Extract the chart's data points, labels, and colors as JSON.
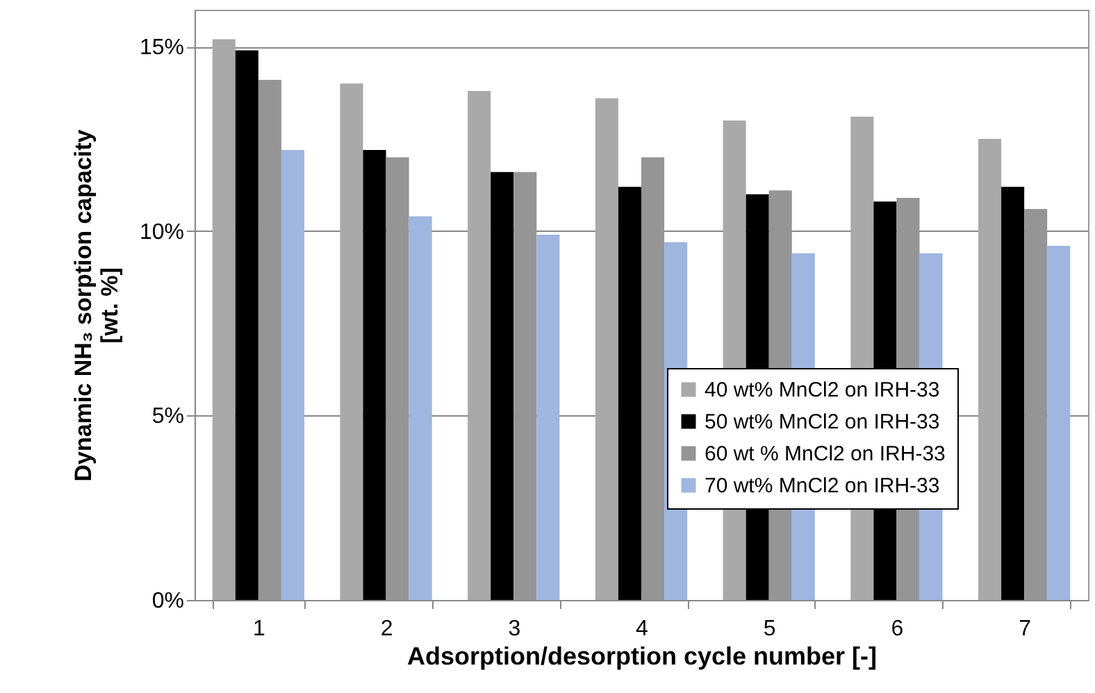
{
  "chart_data": {
    "type": "bar",
    "xlabel": "Adsorption/desorption cycle number [-]",
    "ylabel": "Dynamic NH₃ sorption capacity [wt. %]",
    "categories": [
      "1",
      "2",
      "3",
      "4",
      "5",
      "6",
      "7"
    ],
    "series": [
      {
        "name": "40 wt% MnCl2 on IRH-33",
        "color": "#a9a9a9",
        "values": [
          15.2,
          14.0,
          13.8,
          13.6,
          13.0,
          13.1,
          12.5
        ]
      },
      {
        "name": " 50 wt% MnCl2 on IRH-33",
        "color": "#000000",
        "values": [
          14.9,
          12.2,
          11.6,
          11.2,
          11.0,
          10.8,
          11.2
        ]
      },
      {
        "name": "60 wt % MnCl2 on IRH-33",
        "color": "#959595",
        "values": [
          14.1,
          12.0,
          11.6,
          12.0,
          11.1,
          10.9,
          10.6
        ]
      },
      {
        "name": "70 wt% MnCl2 on IRH-33",
        "color": "#9eb6e0",
        "values": [
          12.2,
          10.4,
          9.9,
          9.7,
          9.4,
          9.4,
          9.6
        ]
      }
    ],
    "ylim": [
      0,
      16
    ],
    "yticks": [
      {
        "value": 0,
        "label": "0%"
      },
      {
        "value": 5,
        "label": "5%"
      },
      {
        "value": 10,
        "label": "10%"
      },
      {
        "value": 15,
        "label": "15%"
      }
    ],
    "grid": "y",
    "legend": "bottom right"
  }
}
